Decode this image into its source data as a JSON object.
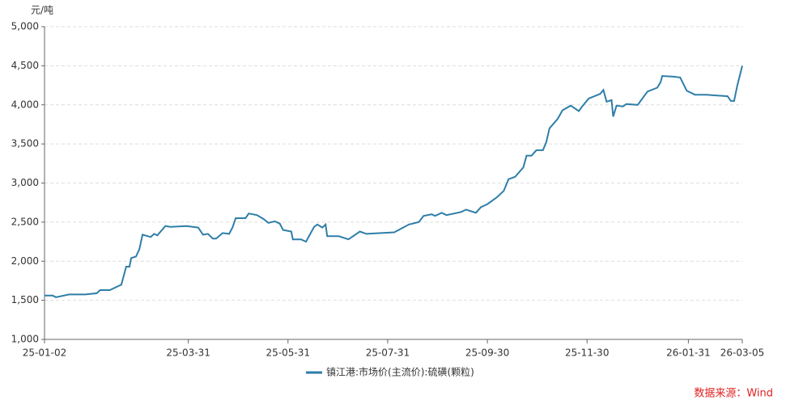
{
  "chart_data": {
    "type": "line",
    "y_unit": "元/吨",
    "source": "数据来源：Wind",
    "x": [
      "25-01-02",
      "25-01-07",
      "25-01-09",
      "25-01-17",
      "25-01-27",
      "25-02-03",
      "25-02-05",
      "25-02-11",
      "25-02-18",
      "25-02-21",
      "25-02-23",
      "25-02-24",
      "25-02-27",
      "25-03-01",
      "25-03-03",
      "25-03-08",
      "25-03-10",
      "25-03-12",
      "25-03-17",
      "25-03-20",
      "25-03-30",
      "25-04-06",
      "25-04-09",
      "25-04-12",
      "25-04-15",
      "25-04-17",
      "25-04-21",
      "25-04-25",
      "25-04-27",
      "25-04-29",
      "25-05-05",
      "25-05-07",
      "25-05-12",
      "25-05-16",
      "25-05-19",
      "25-05-23",
      "25-05-26",
      "25-05-28",
      "25-06-02",
      "25-06-03",
      "25-06-08",
      "25-06-11",
      "25-06-16",
      "25-06-18",
      "25-06-21",
      "25-06-23",
      "25-06-24",
      "25-07-01",
      "25-07-07",
      "25-07-14",
      "25-07-18",
      "25-07-27",
      "25-08-04",
      "25-08-13",
      "25-08-19",
      "25-08-22",
      "25-08-27",
      "25-08-29",
      "25-09-02",
      "25-09-05",
      "25-09-14",
      "25-09-17",
      "25-09-23",
      "25-09-26",
      "25-09-30",
      "25-10-06",
      "25-10-10",
      "25-10-13",
      "25-10-17",
      "25-10-22",
      "25-10-24",
      "25-10-27",
      "25-10-30",
      "25-11-03",
      "25-11-05",
      "25-11-07",
      "25-11-12",
      "25-11-15",
      "25-11-20",
      "25-11-25",
      "25-11-27",
      "25-12-01",
      "25-12-08",
      "25-12-10",
      "25-12-12",
      "25-12-15",
      "25-12-16",
      "25-12-18",
      "25-12-22",
      "25-12-24",
      "25-12-31",
      "26-01-06",
      "26-01-12",
      "26-01-14",
      "26-01-15",
      "26-01-22",
      "26-01-26",
      "26-01-30",
      "26-02-04",
      "26-02-11",
      "26-02-24",
      "26-02-26",
      "26-02-28",
      "26-03-02",
      "26-03-05"
    ],
    "series": [
      {
        "name": "镇江港:市场价(主流价):硫磺(颗粒)",
        "color": "#2e7ea8",
        "values": [
          1560,
          1560,
          1540,
          1575,
          1575,
          1590,
          1630,
          1630,
          1700,
          1930,
          1930,
          2040,
          2060,
          2150,
          2340,
          2310,
          2350,
          2330,
          2450,
          2440,
          2450,
          2430,
          2340,
          2350,
          2290,
          2290,
          2360,
          2350,
          2430,
          2550,
          2550,
          2610,
          2590,
          2540,
          2490,
          2510,
          2480,
          2400,
          2380,
          2280,
          2280,
          2250,
          2440,
          2470,
          2430,
          2470,
          2320,
          2320,
          2280,
          2380,
          2350,
          2360,
          2370,
          2470,
          2500,
          2580,
          2600,
          2580,
          2620,
          2590,
          2630,
          2660,
          2620,
          2690,
          2730,
          2820,
          2900,
          3050,
          3080,
          3200,
          3350,
          3350,
          3420,
          3420,
          3520,
          3700,
          3820,
          3930,
          3990,
          3920,
          3980,
          4080,
          4140,
          4190,
          4040,
          4060,
          3850,
          3990,
          3980,
          4010,
          4000,
          4170,
          4220,
          4290,
          4370,
          4360,
          4350,
          4180,
          4130,
          4130,
          4110,
          4050,
          4050,
          4250,
          4500
        ]
      }
    ],
    "xlim": [
      "25-01-02",
      "26-03-05"
    ],
    "xticks": [
      "25-01-02",
      "25-03-31",
      "25-05-31",
      "25-07-31",
      "25-09-30",
      "25-11-30",
      "26-01-31",
      "26-03-05"
    ],
    "ylim": [
      1000,
      5000
    ],
    "yticks": [
      {
        "value": 1000,
        "label": "1,000"
      },
      {
        "value": 1500,
        "label": "1,500"
      },
      {
        "value": 2000,
        "label": "2,000"
      },
      {
        "value": 2500,
        "label": "2,500"
      },
      {
        "value": 3000,
        "label": "3,000"
      },
      {
        "value": 3500,
        "label": "3,500"
      },
      {
        "value": 4000,
        "label": "4,000"
      },
      {
        "value": 4500,
        "label": "4,500"
      },
      {
        "value": 5000,
        "label": "5,000"
      }
    ],
    "grid": true
  }
}
